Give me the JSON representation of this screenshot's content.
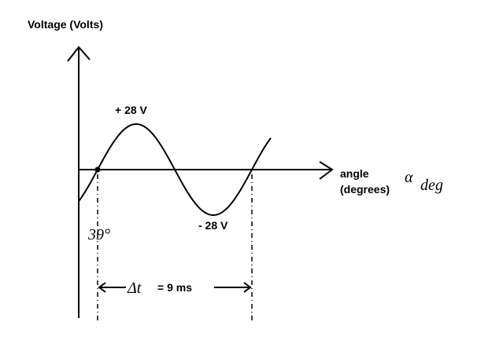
{
  "title": "Voltage (Volts)",
  "peak_label": "+ 28 V",
  "trough_label": "- 28 V",
  "x_axis": {
    "label": "angle",
    "unit": "(degrees)",
    "symbol": "α",
    "symbol_subscript": "deg"
  },
  "phase_label": "39°",
  "interval": {
    "symbol": "Δt",
    "text": "= 9 ms"
  }
}
